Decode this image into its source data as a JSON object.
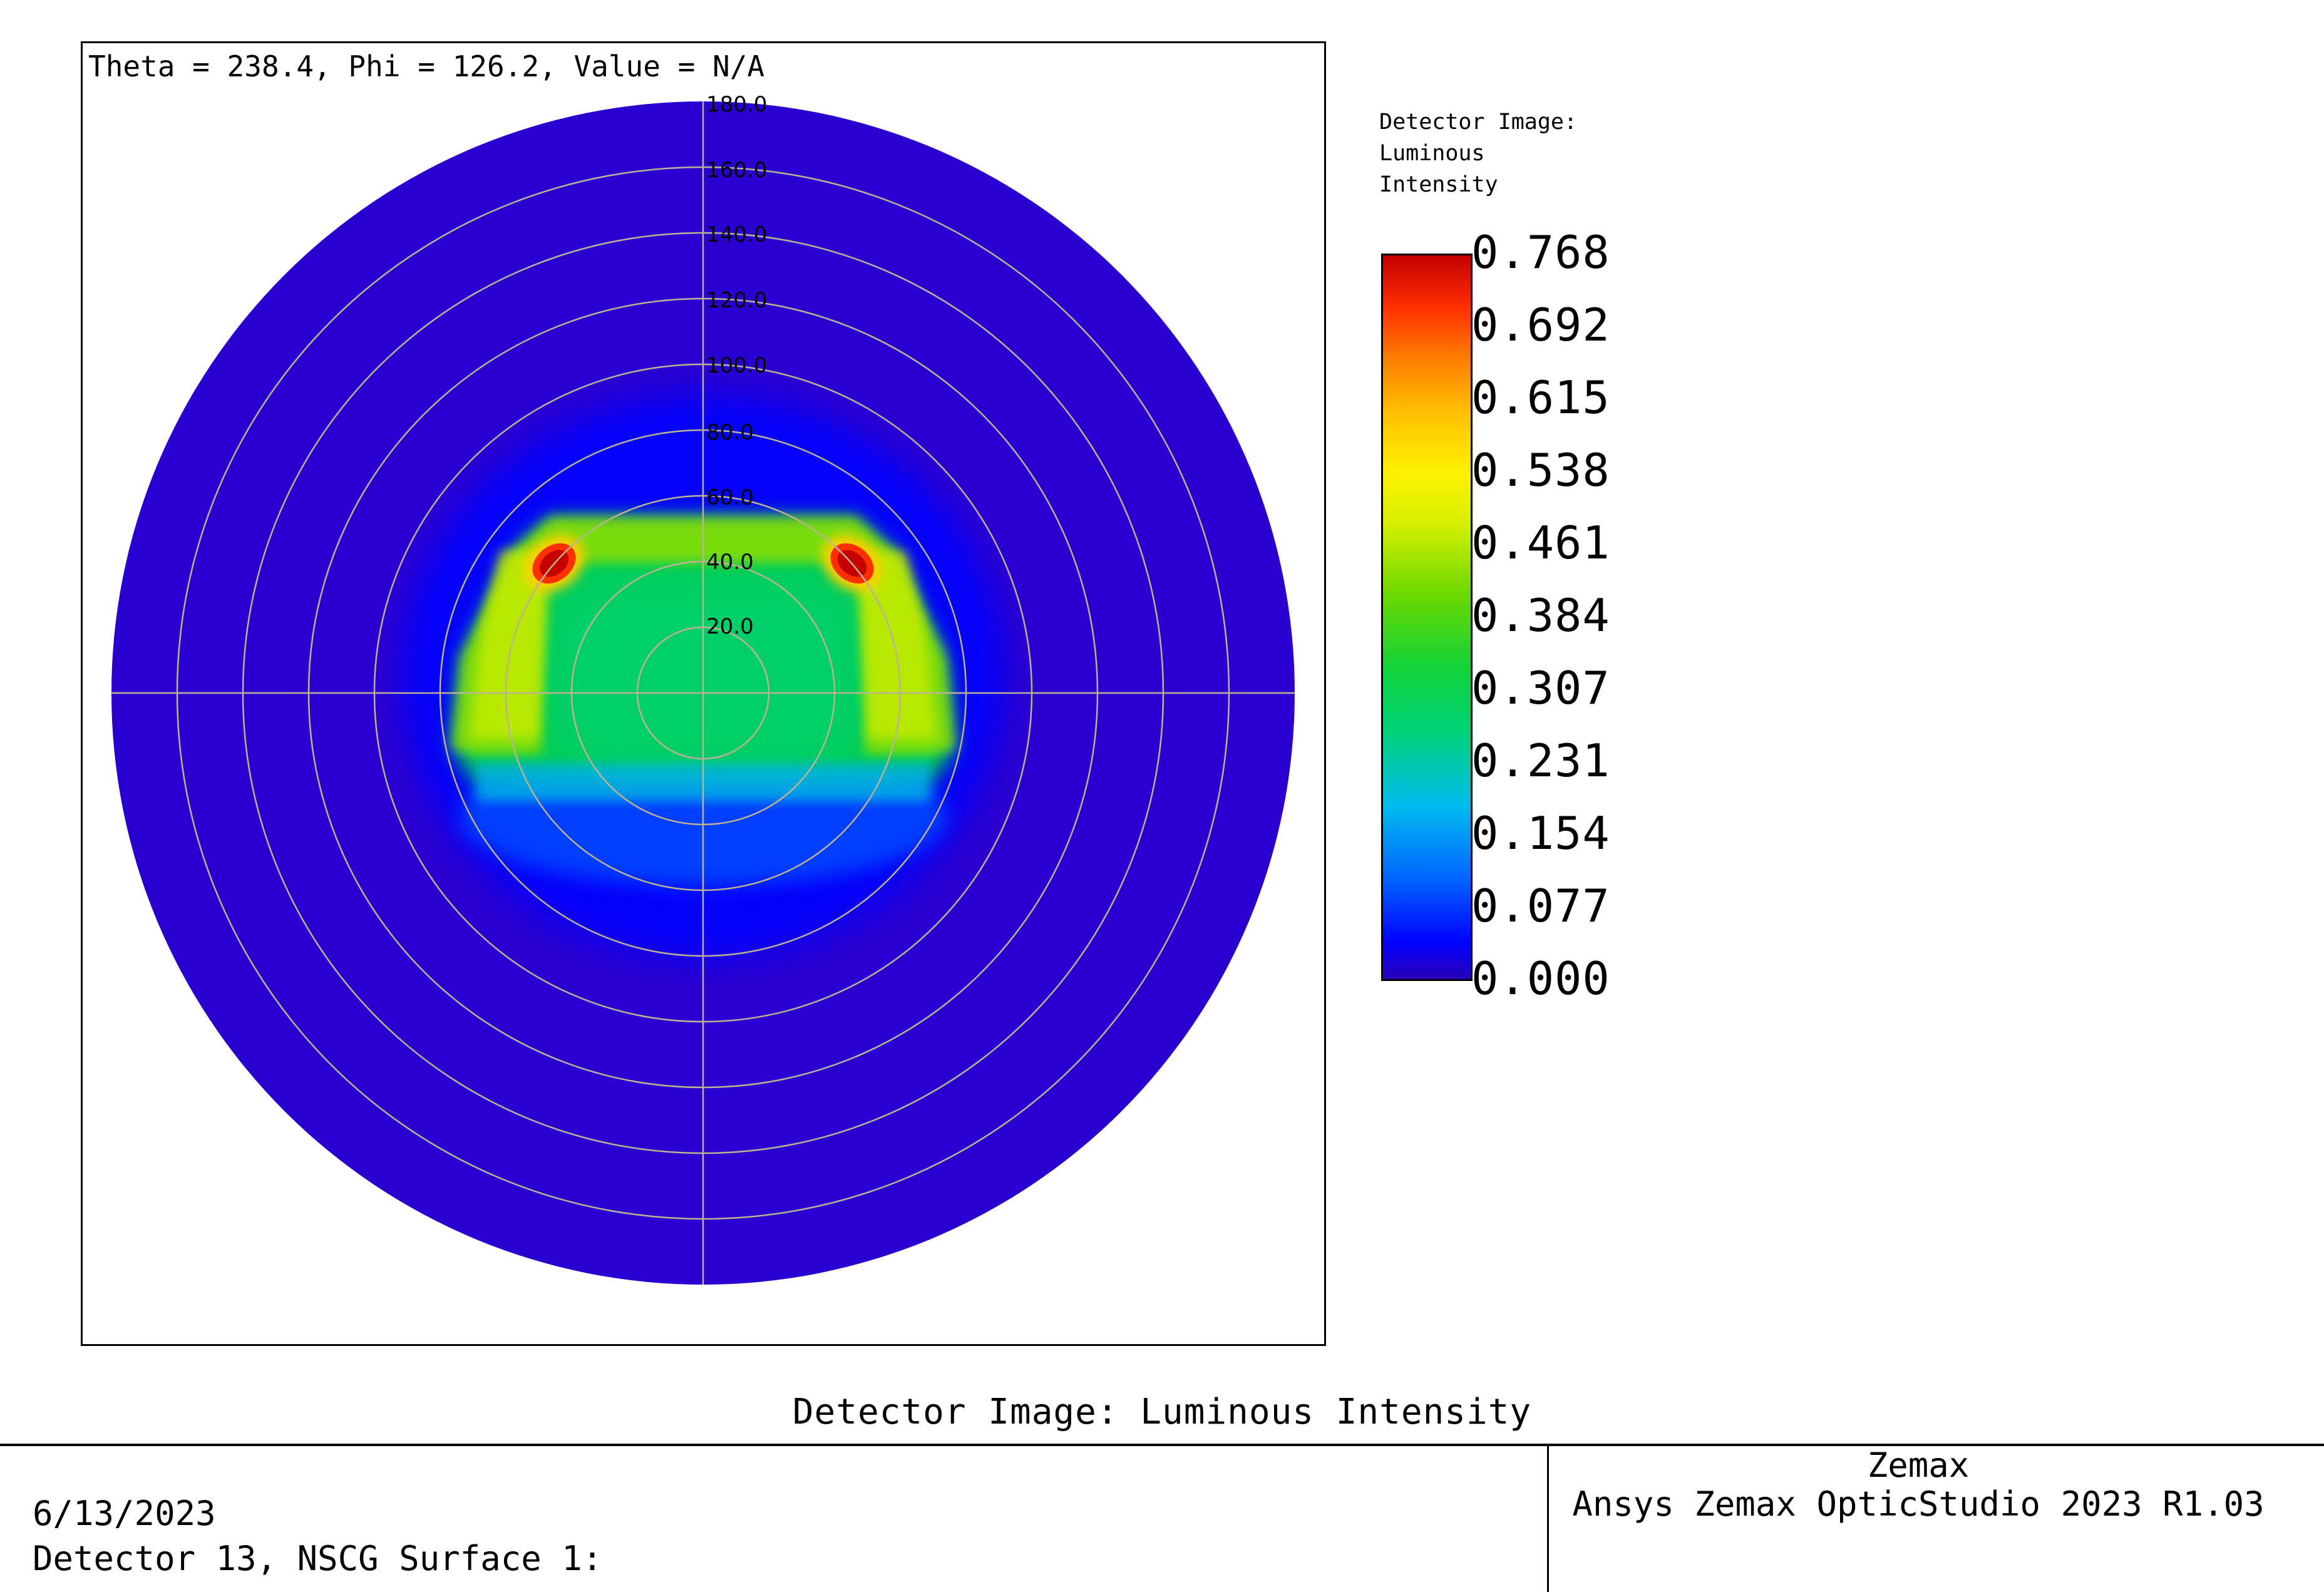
{
  "status": {
    "readout": "Theta = 238.4, Phi = 126.2, Value = N/A"
  },
  "legend": {
    "title": "Detector Image:\nLuminous\nIntensity",
    "values": [
      "0.768",
      "0.692",
      "0.615",
      "0.538",
      "0.461",
      "0.384",
      "0.307",
      "0.231",
      "0.154",
      "0.077",
      "0.000"
    ],
    "colormap": [
      "#2a00b7",
      "#0000ff",
      "#0066ff",
      "#00bbee",
      "#00d27a",
      "#11d33a",
      "#6ad800",
      "#d6ef00",
      "#fff100",
      "#ffc200",
      "#ff7b00",
      "#ff2d00",
      "#c10000"
    ]
  },
  "plot_title": "Detector Image: Luminous Intensity",
  "footer": {
    "date": "6/13/2023",
    "detector": "Detector 13, NSCG Surface 1:",
    "company": "Zemax",
    "product": "Ansys Zemax OpticStudio 2023 R1.03"
  },
  "chart_data": {
    "type": "heatmap",
    "projection": "polar",
    "title": "Detector Image: Luminous Intensity",
    "colorbar_title": "Detector Image: Luminous Intensity",
    "radial_ticks": [
      "20.0",
      "40.0",
      "60.0",
      "80.0",
      "100.0",
      "120.0",
      "140.0",
      "160.0",
      "180.0"
    ],
    "radial_range": [
      0,
      180
    ],
    "value_range": [
      0.0,
      0.768
    ],
    "background_value": 0.0,
    "grid": true,
    "crosshair": true,
    "regions": [
      {
        "name": "central plateau",
        "theta_deg_range": [
          0,
          50
        ],
        "value": 0.3
      },
      {
        "name": "upper band",
        "theta_deg_range": [
          40,
          58
        ],
        "value": 0.47
      },
      {
        "name": "lower falloff",
        "theta_deg_range": [
          50,
          70
        ],
        "value": 0.1
      },
      {
        "name": "upper-left hot spot",
        "value": 0.768
      },
      {
        "name": "upper-right hot spot",
        "value": 0.768
      }
    ]
  }
}
